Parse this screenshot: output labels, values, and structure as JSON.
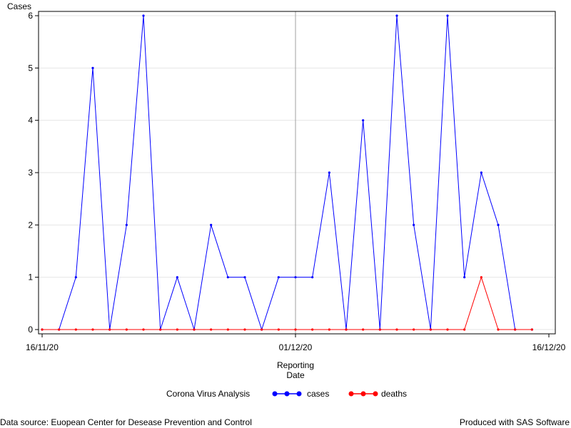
{
  "chart_data": {
    "type": "line",
    "ylabel": "Cases",
    "xlabel_lines": [
      "Reporting",
      "Date"
    ],
    "x_tick_labels": [
      "16/11/20",
      "01/12/20",
      "16/12/20"
    ],
    "y_ticks": [
      0,
      1,
      2,
      3,
      4,
      5,
      6
    ],
    "ylim": [
      0,
      6
    ],
    "xlim": [
      "2020-11-16",
      "2020-12-16"
    ],
    "reference_line_x": "2020-12-01",
    "x": [
      "2020-11-16",
      "2020-11-17",
      "2020-11-18",
      "2020-11-19",
      "2020-11-20",
      "2020-11-21",
      "2020-11-22",
      "2020-11-23",
      "2020-11-24",
      "2020-11-25",
      "2020-11-26",
      "2020-11-27",
      "2020-11-28",
      "2020-11-29",
      "2020-11-30",
      "2020-12-01",
      "2020-12-02",
      "2020-12-03",
      "2020-12-04",
      "2020-12-05",
      "2020-12-06",
      "2020-12-07",
      "2020-12-08",
      "2020-12-09",
      "2020-12-10",
      "2020-12-11",
      "2020-12-12",
      "2020-12-13",
      "2020-12-14",
      "2020-12-15"
    ],
    "series": [
      {
        "name": "cases",
        "color": "#0000ff",
        "values": [
          0,
          0,
          1,
          5,
          0,
          2,
          6,
          0,
          1,
          0,
          2,
          1,
          1,
          0,
          1,
          1,
          1,
          3,
          0,
          4,
          0,
          6,
          2,
          0,
          6,
          1,
          3,
          2,
          0,
          0
        ]
      },
      {
        "name": "deaths",
        "color": "#ff0000",
        "values": [
          0,
          0,
          0,
          0,
          0,
          0,
          0,
          0,
          0,
          0,
          0,
          0,
          0,
          0,
          0,
          0,
          0,
          0,
          0,
          0,
          0,
          0,
          0,
          0,
          0,
          0,
          1,
          0,
          0,
          0
        ]
      }
    ],
    "legend_title": "Corona Virus Analysis",
    "legend_position": "bottom"
  },
  "footer": {
    "left": "Data source: Euopean Center for Desease Prevention and Control",
    "right": "Produced with SAS Software"
  }
}
